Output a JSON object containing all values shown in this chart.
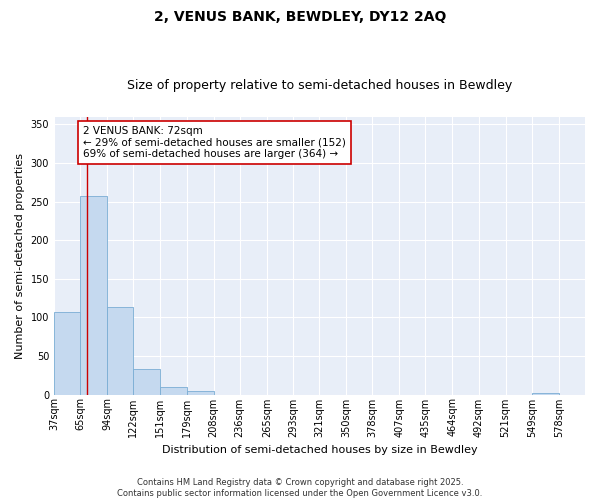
{
  "title1": "2, VENUS BANK, BEWDLEY, DY12 2AQ",
  "title2": "Size of property relative to semi-detached houses in Bewdley",
  "xlabel": "Distribution of semi-detached houses by size in Bewdley",
  "ylabel": "Number of semi-detached properties",
  "bin_edges": [
    37,
    65,
    94,
    122,
    151,
    179,
    208,
    236,
    265,
    293,
    321,
    350,
    378,
    407,
    435,
    464,
    492,
    521,
    549,
    578,
    606
  ],
  "bar_heights": [
    107,
    257,
    113,
    33,
    10,
    5,
    0,
    0,
    0,
    0,
    0,
    0,
    0,
    0,
    0,
    0,
    0,
    0,
    2,
    0
  ],
  "bar_color": "#c5d9ef",
  "bar_edge_color": "#7aadd4",
  "vline_x": 72,
  "vline_color": "#cc0000",
  "annotation_text": "2 VENUS BANK: 72sqm\n← 29% of semi-detached houses are smaller (152)\n69% of semi-detached houses are larger (364) →",
  "annotation_box_color": "#cc0000",
  "annotation_box_fill": "#ffffff",
  "ylim": [
    0,
    360
  ],
  "yticks": [
    0,
    50,
    100,
    150,
    200,
    250,
    300,
    350
  ],
  "background_color": "#e8eef8",
  "grid_color": "#ffffff",
  "footer_text": "Contains HM Land Registry data © Crown copyright and database right 2025.\nContains public sector information licensed under the Open Government Licence v3.0.",
  "title1_fontsize": 10,
  "title2_fontsize": 9,
  "axis_label_fontsize": 8,
  "tick_fontsize": 7,
  "footer_fontsize": 6,
  "annot_fontsize": 7.5
}
